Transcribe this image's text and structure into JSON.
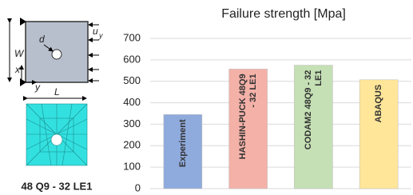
{
  "chart_data": {
    "type": "bar",
    "title": "Failure strength [Mpa]",
    "categories": [
      "Experiment",
      "HASHIN-PUCK 48Q9 - 32 LE1",
      "CODAM2 48Q9 - 32 LE1",
      "ABAQUS"
    ],
    "values": [
      345,
      557,
      575,
      507
    ],
    "colors": [
      "#8faadc",
      "#f4b1a8",
      "#c5e0b4",
      "#ffe699"
    ],
    "ylim": [
      0,
      700
    ],
    "yticks": [
      0,
      100,
      200,
      300,
      400,
      500,
      600,
      700
    ],
    "grid": true
  },
  "diagram": {
    "hole_label": "d",
    "load_label": "u",
    "load_subscript": "y",
    "width_label": "W",
    "x_label": "x",
    "y_label": "y",
    "length_label": "L",
    "mesh_caption": "48 Q9 - 32 LE1"
  }
}
